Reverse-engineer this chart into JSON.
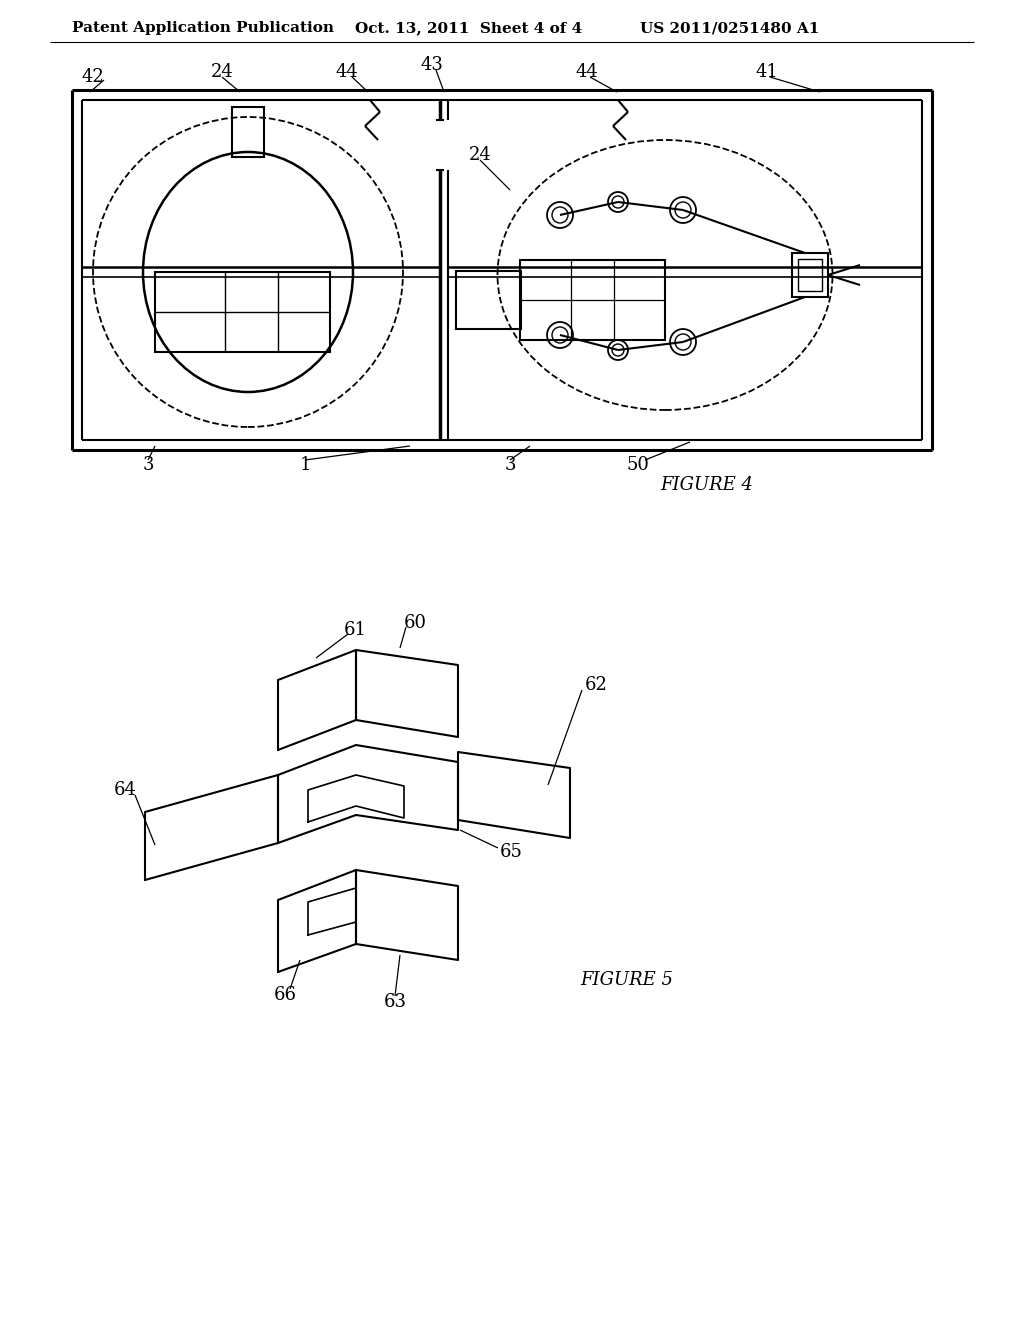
{
  "bg_color": "#ffffff",
  "line_color": "#000000",
  "header_left": "Patent Application Publication",
  "header_mid": "Oct. 13, 2011  Sheet 4 of 4",
  "header_right": "US 2011/0251480 A1",
  "fig4_label": "FIGURE 4",
  "fig5_label": "FIGURE 5"
}
